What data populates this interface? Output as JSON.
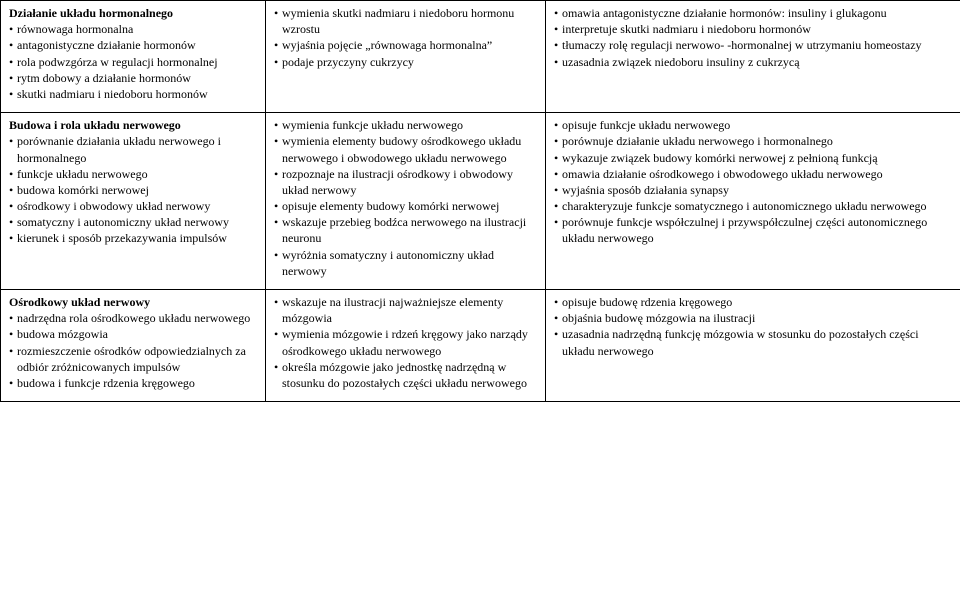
{
  "rows": [
    {
      "col1": {
        "title": "Działanie układu hormonalnego",
        "items": [
          {
            "t": "równowaga hormonalna"
          },
          {
            "t": "antagonistyczne działanie hormonów"
          },
          {
            "t": "rola podwzgórza w regulacji hormonalnej",
            "wrap": true
          },
          {
            "t": "rytm dobowy a działanie hormonów"
          },
          {
            "t": "skutki nadmiaru i niedoboru hormonów",
            "wrap": true
          }
        ]
      },
      "col2": {
        "items": [
          {
            "t": "wymienia skutki nadmiaru i niedoboru hormonu wzrostu",
            "wrap": true
          },
          {
            "t": "wyjaśnia pojęcie „równowaga hormonalna”",
            "wrap": true
          },
          {
            "t": "podaje przyczyny cukrzycy"
          }
        ]
      },
      "col3": {
        "items": [
          {
            "t": "omawia antagonistyczne działanie hormonów: insuliny i glukagonu",
            "wrap": true
          },
          {
            "t": "interpretuje skutki nadmiaru i niedoboru hormonów",
            "wrap": true
          },
          {
            "t": "tłumaczy rolę regulacji nerwowo- -hormonalnej w utrzymaniu homeostazy",
            "wrap": true
          },
          {
            "t": "uzasadnia związek niedoboru insuliny z cukrzycą",
            "wrap": true
          }
        ]
      }
    },
    {
      "col1": {
        "title": "Budowa i rola układu nerwowego",
        "items": [
          {
            "t": "porównanie działania układu nerwowego i hormonalnego",
            "wrap": true
          },
          {
            "t": "funkcje układu nerwowego"
          },
          {
            "t": "budowa komórki nerwowej"
          },
          {
            "t": "ośrodkowy i obwodowy układ nerwowy",
            "wrap": true
          },
          {
            "t": "somatyczny i autonomiczny układ nerwowy",
            "wrap": true
          },
          {
            "t": "kierunek i sposób przekazywania impulsów",
            "wrap": true
          }
        ]
      },
      "col2": {
        "items": [
          {
            "t": "wymienia funkcje układu nerwowego",
            "wrap": true
          },
          {
            "t": "wymienia elementy budowy ośrodkowego układu nerwowego i obwodowego układu nerwowego",
            "wrap": true
          },
          {
            "t": "rozpoznaje na ilustracji ośrodkowy i obwodowy układ nerwowy",
            "wrap": true
          },
          {
            "t": "opisuje elementy budowy komórki nerwowej",
            "wrap": true
          },
          {
            "t": "wskazuje przebieg bodźca nerwowego na ilustracji neuronu",
            "wrap": true
          },
          {
            "t": "wyróżnia somatyczny i autonomiczny układ nerwowy",
            "wrap": true
          }
        ]
      },
      "col3": {
        "items": [
          {
            "t": "opisuje funkcje układu nerwowego"
          },
          {
            "t": "porównuje działanie układu nerwowego i hormonalnego",
            "wrap": true
          },
          {
            "t": "wykazuje związek budowy komórki nerwowej z pełnioną funkcją",
            "wrap": true
          },
          {
            "t": "omawia działanie ośrodkowego i obwodowego układu nerwowego",
            "wrap": true
          },
          {
            "t": "wyjaśnia sposób działania synapsy"
          },
          {
            "t": "charakteryzuje funkcje somatycznego i autonomicznego układu nerwowego",
            "wrap": true
          },
          {
            "t": "porównuje funkcje współczulnej i przywspółczulnej części autonomicznego układu nerwowego",
            "wrap": true
          }
        ]
      }
    },
    {
      "col1": {
        "title": "Ośrodkowy układ nerwowy",
        "items": [
          {
            "t": "nadrzędna rola ośrodkowego układu nerwowego",
            "wrap": true
          },
          {
            "t": "budowa mózgowia"
          },
          {
            "t": "rozmieszczenie ośrodków odpowiedzialnych za odbiór zróżnicowanych impulsów",
            "wrap": true
          },
          {
            "t": "budowa i funkcje rdzenia kręgowego"
          }
        ]
      },
      "col2": {
        "items": [
          {
            "t": "wskazuje na ilustracji najważniejsze elementy mózgowia",
            "wrap": true
          },
          {
            "t": "wymienia mózgowie i rdzeń kręgowy jako narządy ośrodkowego układu nerwowego",
            "wrap": true
          },
          {
            "t": "określa mózgowie jako jednostkę nadrzędną w stosunku do pozostałych części układu nerwowego",
            "wrap": true
          }
        ]
      },
      "col3": {
        "items": [
          {
            "t": "opisuje budowę rdzenia kręgowego"
          },
          {
            "t": "objaśnia budowę mózgowia na ilustracji"
          },
          {
            "t": "uzasadnia nadrzędną funkcję mózgowia w stosunku do pozostałych części układu nerwowego",
            "wrap": true
          }
        ]
      }
    }
  ]
}
